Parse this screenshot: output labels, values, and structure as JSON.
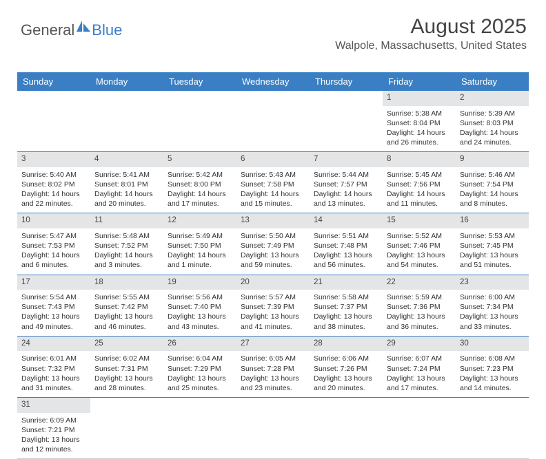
{
  "logo": {
    "part1": "General",
    "part2": "Blue",
    "sail_color": "#3a7fc4"
  },
  "header": {
    "month_title": "August 2025",
    "location": "Walpole, Massachusetts, United States"
  },
  "calendar": {
    "day_headers": [
      "Sunday",
      "Monday",
      "Tuesday",
      "Wednesday",
      "Thursday",
      "Friday",
      "Saturday"
    ],
    "header_bg": "#3a7fc4",
    "header_fg": "#ffffff",
    "daynum_bg": "#e4e5e6",
    "border_color": "#3a7fc4",
    "weeks": [
      [
        null,
        null,
        null,
        null,
        null,
        {
          "n": "1",
          "sunrise": "Sunrise: 5:38 AM",
          "sunset": "Sunset: 8:04 PM",
          "daylight": "Daylight: 14 hours and 26 minutes."
        },
        {
          "n": "2",
          "sunrise": "Sunrise: 5:39 AM",
          "sunset": "Sunset: 8:03 PM",
          "daylight": "Daylight: 14 hours and 24 minutes."
        }
      ],
      [
        {
          "n": "3",
          "sunrise": "Sunrise: 5:40 AM",
          "sunset": "Sunset: 8:02 PM",
          "daylight": "Daylight: 14 hours and 22 minutes."
        },
        {
          "n": "4",
          "sunrise": "Sunrise: 5:41 AM",
          "sunset": "Sunset: 8:01 PM",
          "daylight": "Daylight: 14 hours and 20 minutes."
        },
        {
          "n": "5",
          "sunrise": "Sunrise: 5:42 AM",
          "sunset": "Sunset: 8:00 PM",
          "daylight": "Daylight: 14 hours and 17 minutes."
        },
        {
          "n": "6",
          "sunrise": "Sunrise: 5:43 AM",
          "sunset": "Sunset: 7:58 PM",
          "daylight": "Daylight: 14 hours and 15 minutes."
        },
        {
          "n": "7",
          "sunrise": "Sunrise: 5:44 AM",
          "sunset": "Sunset: 7:57 PM",
          "daylight": "Daylight: 14 hours and 13 minutes."
        },
        {
          "n": "8",
          "sunrise": "Sunrise: 5:45 AM",
          "sunset": "Sunset: 7:56 PM",
          "daylight": "Daylight: 14 hours and 11 minutes."
        },
        {
          "n": "9",
          "sunrise": "Sunrise: 5:46 AM",
          "sunset": "Sunset: 7:54 PM",
          "daylight": "Daylight: 14 hours and 8 minutes."
        }
      ],
      [
        {
          "n": "10",
          "sunrise": "Sunrise: 5:47 AM",
          "sunset": "Sunset: 7:53 PM",
          "daylight": "Daylight: 14 hours and 6 minutes."
        },
        {
          "n": "11",
          "sunrise": "Sunrise: 5:48 AM",
          "sunset": "Sunset: 7:52 PM",
          "daylight": "Daylight: 14 hours and 3 minutes."
        },
        {
          "n": "12",
          "sunrise": "Sunrise: 5:49 AM",
          "sunset": "Sunset: 7:50 PM",
          "daylight": "Daylight: 14 hours and 1 minute."
        },
        {
          "n": "13",
          "sunrise": "Sunrise: 5:50 AM",
          "sunset": "Sunset: 7:49 PM",
          "daylight": "Daylight: 13 hours and 59 minutes."
        },
        {
          "n": "14",
          "sunrise": "Sunrise: 5:51 AM",
          "sunset": "Sunset: 7:48 PM",
          "daylight": "Daylight: 13 hours and 56 minutes."
        },
        {
          "n": "15",
          "sunrise": "Sunrise: 5:52 AM",
          "sunset": "Sunset: 7:46 PM",
          "daylight": "Daylight: 13 hours and 54 minutes."
        },
        {
          "n": "16",
          "sunrise": "Sunrise: 5:53 AM",
          "sunset": "Sunset: 7:45 PM",
          "daylight": "Daylight: 13 hours and 51 minutes."
        }
      ],
      [
        {
          "n": "17",
          "sunrise": "Sunrise: 5:54 AM",
          "sunset": "Sunset: 7:43 PM",
          "daylight": "Daylight: 13 hours and 49 minutes."
        },
        {
          "n": "18",
          "sunrise": "Sunrise: 5:55 AM",
          "sunset": "Sunset: 7:42 PM",
          "daylight": "Daylight: 13 hours and 46 minutes."
        },
        {
          "n": "19",
          "sunrise": "Sunrise: 5:56 AM",
          "sunset": "Sunset: 7:40 PM",
          "daylight": "Daylight: 13 hours and 43 minutes."
        },
        {
          "n": "20",
          "sunrise": "Sunrise: 5:57 AM",
          "sunset": "Sunset: 7:39 PM",
          "daylight": "Daylight: 13 hours and 41 minutes."
        },
        {
          "n": "21",
          "sunrise": "Sunrise: 5:58 AM",
          "sunset": "Sunset: 7:37 PM",
          "daylight": "Daylight: 13 hours and 38 minutes."
        },
        {
          "n": "22",
          "sunrise": "Sunrise: 5:59 AM",
          "sunset": "Sunset: 7:36 PM",
          "daylight": "Daylight: 13 hours and 36 minutes."
        },
        {
          "n": "23",
          "sunrise": "Sunrise: 6:00 AM",
          "sunset": "Sunset: 7:34 PM",
          "daylight": "Daylight: 13 hours and 33 minutes."
        }
      ],
      [
        {
          "n": "24",
          "sunrise": "Sunrise: 6:01 AM",
          "sunset": "Sunset: 7:32 PM",
          "daylight": "Daylight: 13 hours and 31 minutes."
        },
        {
          "n": "25",
          "sunrise": "Sunrise: 6:02 AM",
          "sunset": "Sunset: 7:31 PM",
          "daylight": "Daylight: 13 hours and 28 minutes."
        },
        {
          "n": "26",
          "sunrise": "Sunrise: 6:04 AM",
          "sunset": "Sunset: 7:29 PM",
          "daylight": "Daylight: 13 hours and 25 minutes."
        },
        {
          "n": "27",
          "sunrise": "Sunrise: 6:05 AM",
          "sunset": "Sunset: 7:28 PM",
          "daylight": "Daylight: 13 hours and 23 minutes."
        },
        {
          "n": "28",
          "sunrise": "Sunrise: 6:06 AM",
          "sunset": "Sunset: 7:26 PM",
          "daylight": "Daylight: 13 hours and 20 minutes."
        },
        {
          "n": "29",
          "sunrise": "Sunrise: 6:07 AM",
          "sunset": "Sunset: 7:24 PM",
          "daylight": "Daylight: 13 hours and 17 minutes."
        },
        {
          "n": "30",
          "sunrise": "Sunrise: 6:08 AM",
          "sunset": "Sunset: 7:23 PM",
          "daylight": "Daylight: 13 hours and 14 minutes."
        }
      ],
      [
        {
          "n": "31",
          "sunrise": "Sunrise: 6:09 AM",
          "sunset": "Sunset: 7:21 PM",
          "daylight": "Daylight: 13 hours and 12 minutes."
        },
        null,
        null,
        null,
        null,
        null,
        null
      ]
    ]
  }
}
